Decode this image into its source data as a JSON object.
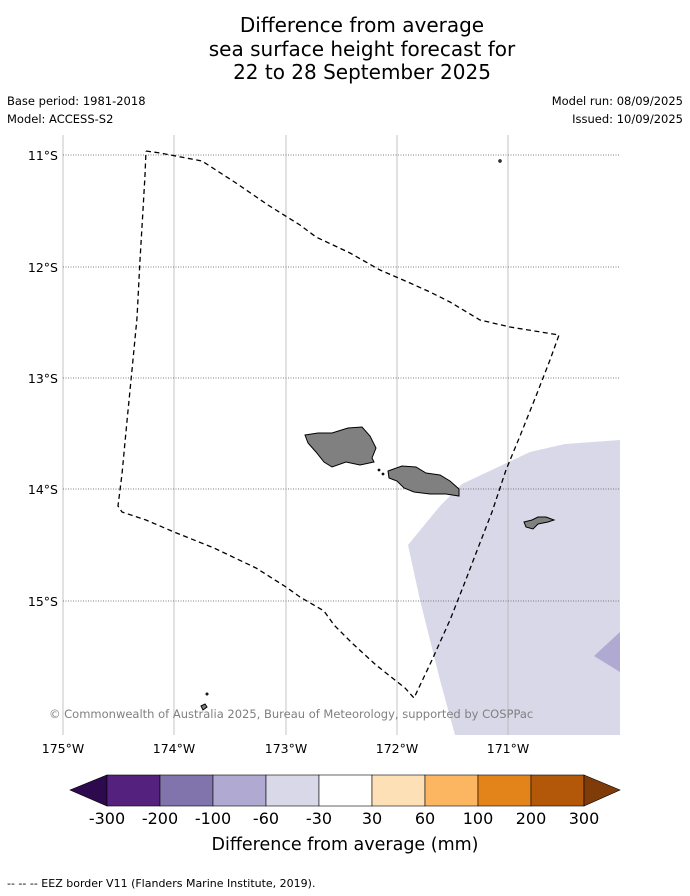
{
  "title": {
    "line1": "Difference from average",
    "line2": "sea surface height forecast for",
    "line3": "22 to 28 September 2025"
  },
  "meta": {
    "base_period": "Base period: 1981-2018",
    "model": "Model: ACCESS-S2",
    "model_run": "Model run: 08/09/2025",
    "issued": "Issued: 10/09/2025"
  },
  "map": {
    "lat_labels": [
      "11°S",
      "12°S",
      "13°S",
      "14°S",
      "15°S"
    ],
    "lon_labels": [
      "175°W",
      "174°W",
      "173°W",
      "172°W",
      "171°W"
    ],
    "copyright": "© Commonwealth of Australia 2025, Bureau of Meteorology, supported by COSPPac",
    "colors": {
      "land": "#808080",
      "anomaly_-30_-60": "#d8d8e9",
      "anomaly_-60_-100": "#b0a9d1"
    }
  },
  "colorbar": {
    "label": "Difference from average (mm)",
    "ticks": [
      "-300",
      "-200",
      "-100",
      "-60",
      "-30",
      "30",
      "60",
      "100",
      "200",
      "300"
    ],
    "colors": [
      "#55217f",
      "#8174ad",
      "#b0a9d1",
      "#d8d8e9",
      "#ffffff",
      "#fee0b6",
      "#fcb661",
      "#e3841a",
      "#b35708"
    ],
    "extend_low": "#2d0a4e",
    "extend_high": "#7f3b08"
  },
  "footer": {
    "legend_text": "--  --  -- EEZ border V11 (Flanders Marine Institute, 2019)."
  }
}
